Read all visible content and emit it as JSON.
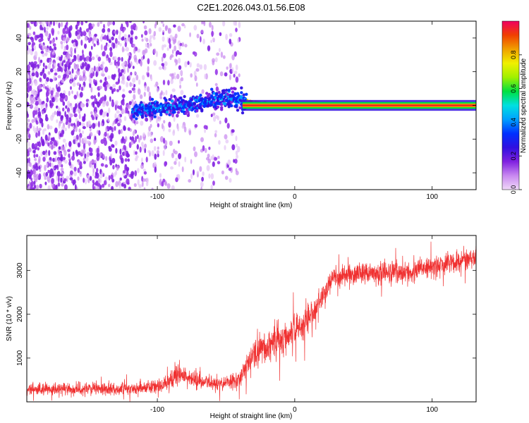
{
  "title": "C2E1.2026.043.01.56.E08",
  "colors": {
    "trace": "#f03030",
    "axis": "#000000",
    "colorbar_stops": [
      "#f0d8f8",
      "#c888f0",
      "#8020e0",
      "#3010e0",
      "#0030ff",
      "#00a0ff",
      "#00e0e0",
      "#00e040",
      "#a0f000",
      "#f0f000",
      "#f0a000",
      "#f04000",
      "#f00060"
    ]
  },
  "chart_data": [
    {
      "type": "heatmap",
      "name": "spectrogram",
      "xlabel": "Height of straight line (km)",
      "ylabel": "Frequency (Hz)",
      "xlim": [
        -195,
        132
      ],
      "ylim": [
        -50,
        50
      ],
      "xticks": [
        -100,
        0,
        100
      ],
      "yticks": [
        -40,
        -20,
        0,
        20,
        40
      ],
      "colorbar": {
        "label": "Normalized spectral amplitude",
        "range": [
          0,
          1
        ],
        "ticks": [
          0.0,
          0.2,
          0.4,
          0.6,
          0.8
        ]
      },
      "description_points": {
        "noise_region_x": [
          -195,
          -45
        ],
        "signal_onset_x": -118,
        "signal_frequency_hz": 0,
        "signal_center_path": [
          {
            "x": -118,
            "y": -4
          },
          {
            "x": -100,
            "y": -2
          },
          {
            "x": -80,
            "y": 0
          },
          {
            "x": -60,
            "y": 3
          },
          {
            "x": -45,
            "y": 5
          },
          {
            "x": -38,
            "y": 3
          },
          {
            "x": -30,
            "y": 2
          },
          {
            "x": -20,
            "y": 1
          },
          {
            "x": 0,
            "y": 0
          },
          {
            "x": 132,
            "y": 0
          }
        ]
      }
    },
    {
      "type": "line",
      "name": "snr",
      "xlabel": "Height of straight line (km)",
      "ylabel": "SNR (10 * v/v)",
      "xlim": [
        -195,
        132
      ],
      "ylim": [
        0,
        3800
      ],
      "xticks": [
        -100,
        0,
        100
      ],
      "yticks": [
        1000,
        2000,
        3000
      ],
      "series": [
        {
          "name": "SNR",
          "envelope": [
            {
              "x": -195,
              "mean": 280,
              "spread": 300
            },
            {
              "x": -120,
              "mean": 300,
              "spread": 300
            },
            {
              "x": -95,
              "mean": 380,
              "spread": 350
            },
            {
              "x": -85,
              "mean": 650,
              "spread": 550
            },
            {
              "x": -75,
              "mean": 500,
              "spread": 450
            },
            {
              "x": -55,
              "mean": 400,
              "spread": 350
            },
            {
              "x": -40,
              "mean": 520,
              "spread": 450
            },
            {
              "x": -30,
              "mean": 1100,
              "spread": 700
            },
            {
              "x": -20,
              "mean": 1300,
              "spread": 900
            },
            {
              "x": -5,
              "mean": 1500,
              "spread": 900
            },
            {
              "x": 10,
              "mean": 1900,
              "spread": 800
            },
            {
              "x": 20,
              "mean": 2400,
              "spread": 600
            },
            {
              "x": 28,
              "mean": 2850,
              "spread": 500
            },
            {
              "x": 50,
              "mean": 2950,
              "spread": 550
            },
            {
              "x": 80,
              "mean": 2950,
              "spread": 550
            },
            {
              "x": 110,
              "mean": 3150,
              "spread": 600
            },
            {
              "x": 132,
              "mean": 3300,
              "spread": 500
            }
          ]
        }
      ]
    }
  ]
}
